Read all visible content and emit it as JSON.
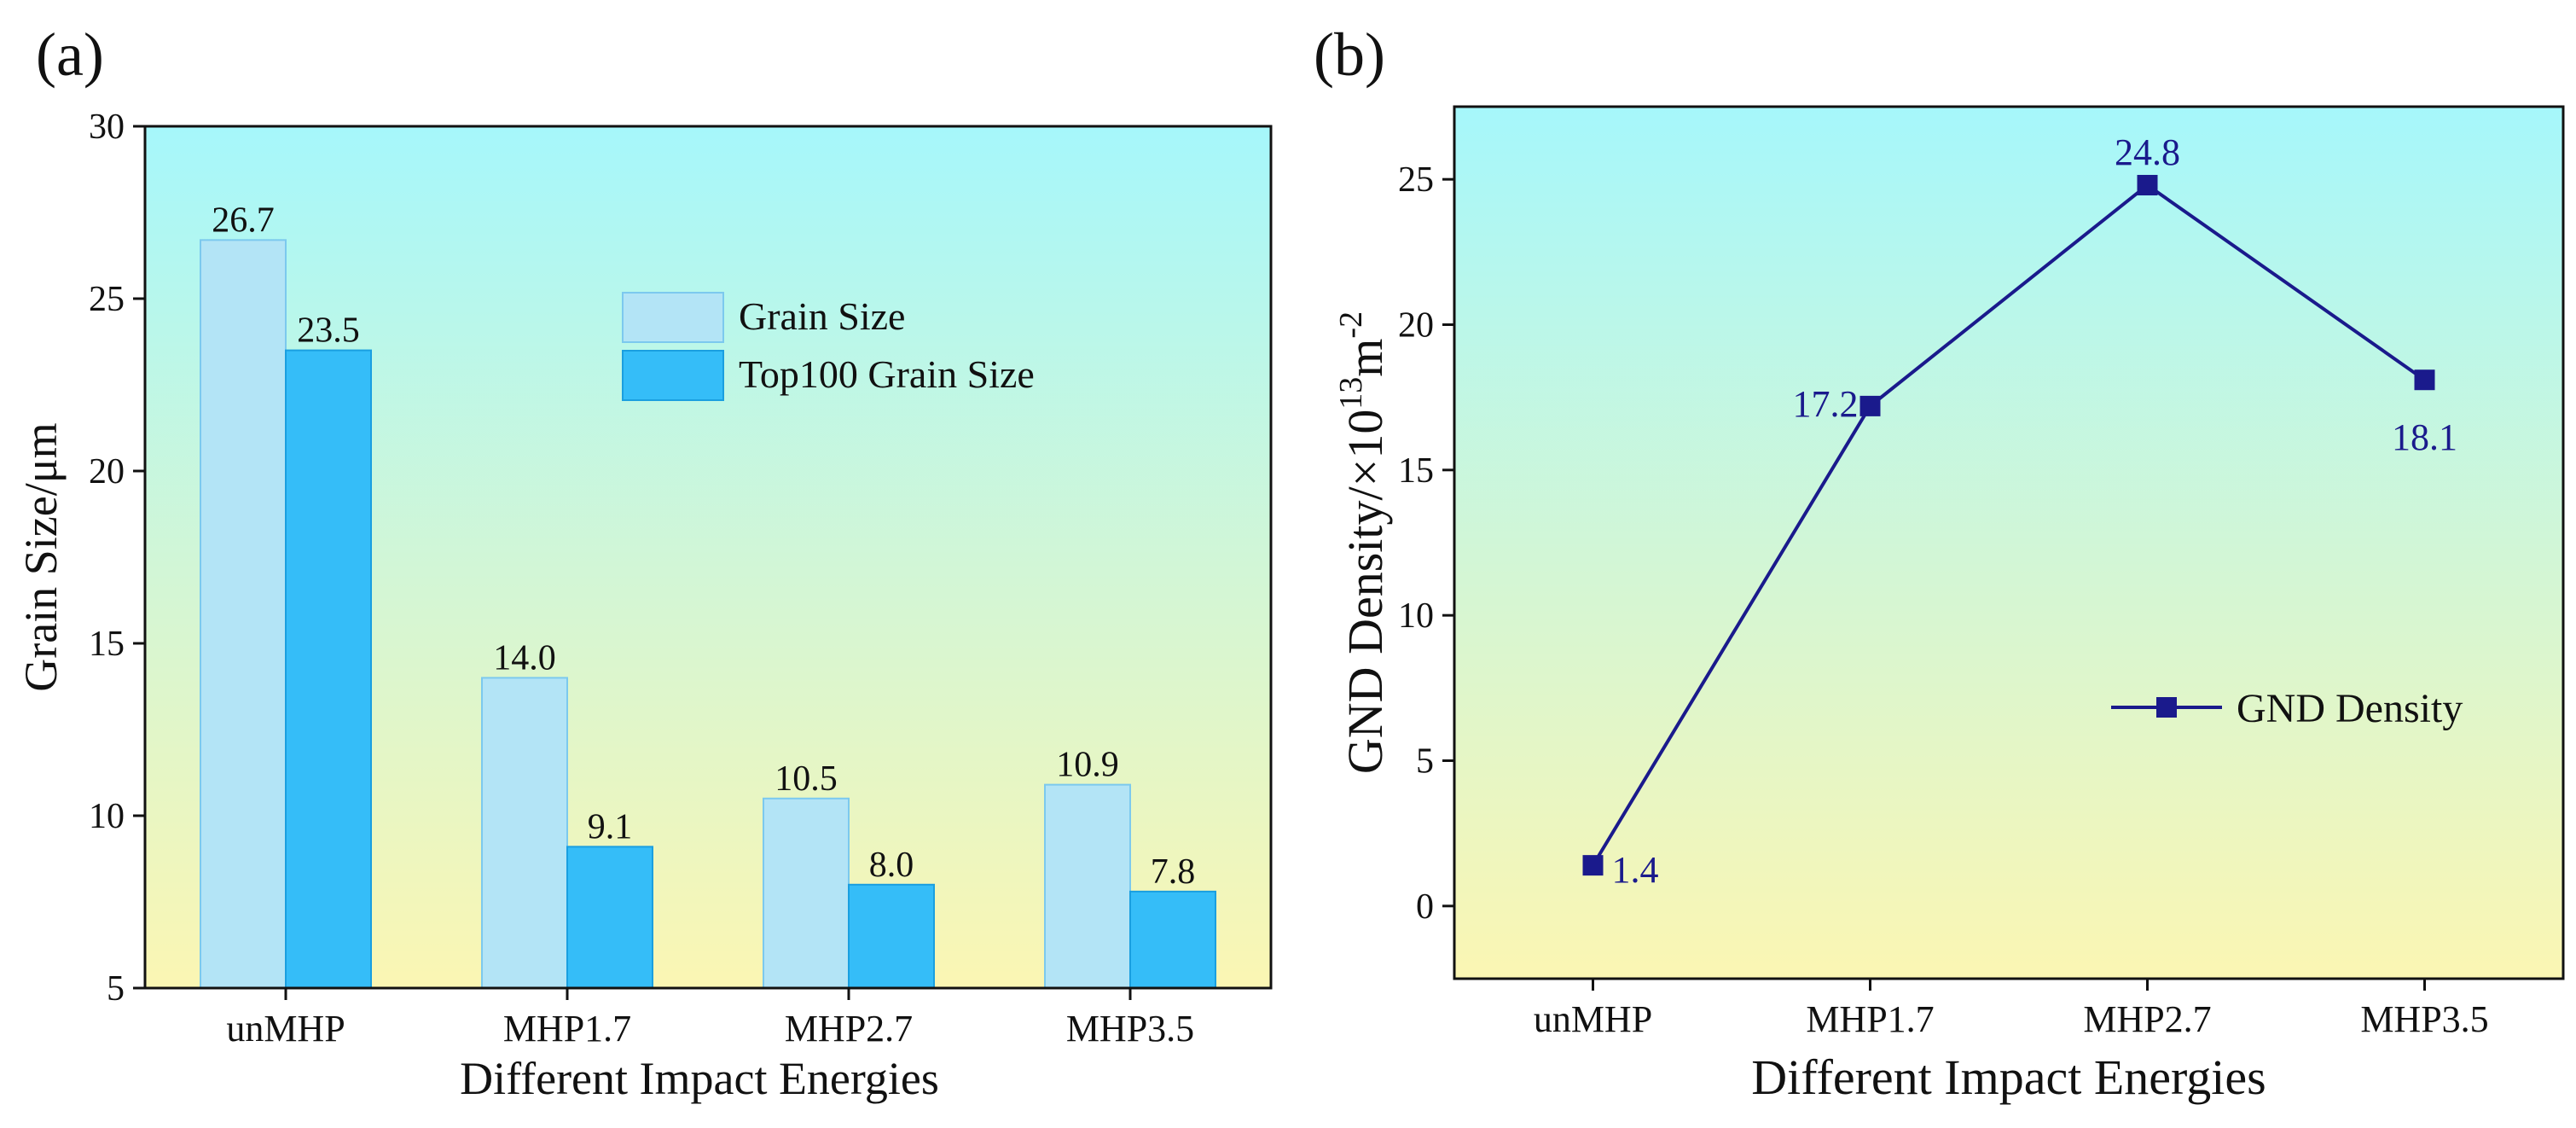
{
  "chart_data": [
    {
      "panel_label": "(a)",
      "type": "bar",
      "xlabel": "Different Impact Energies",
      "ylabel": "Grain Size/μm",
      "categories": [
        "unMHP",
        "MHP1.7",
        "MHP2.7",
        "MHP3.5"
      ],
      "ylim": [
        5,
        30
      ],
      "yticks": [
        5,
        10,
        15,
        20,
        25,
        30
      ],
      "series": [
        {
          "name": "Grain Size",
          "values": [
            26.7,
            14.0,
            10.5,
            10.9
          ],
          "labels": [
            "26.7",
            "14.0",
            "10.5",
            "10.9"
          ],
          "color": "#b3e4f6",
          "stroke": "#7cc9ee"
        },
        {
          "name": "Top100 Grain Size",
          "values": [
            23.5,
            9.1,
            8.0,
            7.8
          ],
          "labels": [
            "23.5",
            "9.1",
            "8.0",
            "7.8"
          ],
          "color": "#35bdf8",
          "stroke": "#1a9fe0"
        }
      ],
      "legend_position": "top-right",
      "background_gradient": [
        "#a6f7fb",
        "#fbf6b3"
      ]
    },
    {
      "panel_label": "(b)",
      "type": "line",
      "xlabel": "Different Impact Energies",
      "ylabel_main": "GND Density/×10",
      "ylabel_sup1": "13",
      "ylabel_mid": "m",
      "ylabel_sup2": "-2",
      "categories": [
        "unMHP",
        "MHP1.7",
        "MHP2.7",
        "MHP3.5"
      ],
      "ylim": [
        -2.5,
        27.5
      ],
      "yticks": [
        0,
        5,
        10,
        15,
        20,
        25
      ],
      "series": [
        {
          "name": "GND Density",
          "values": [
            1.4,
            17.2,
            24.8,
            18.1
          ],
          "labels": [
            "1.4",
            "17.2",
            "24.8",
            "18.1"
          ],
          "color": "#1a1a8c"
        }
      ],
      "legend_position": "center-right",
      "background_gradient": [
        "#a6f7fb",
        "#fbf6b3"
      ]
    }
  ]
}
